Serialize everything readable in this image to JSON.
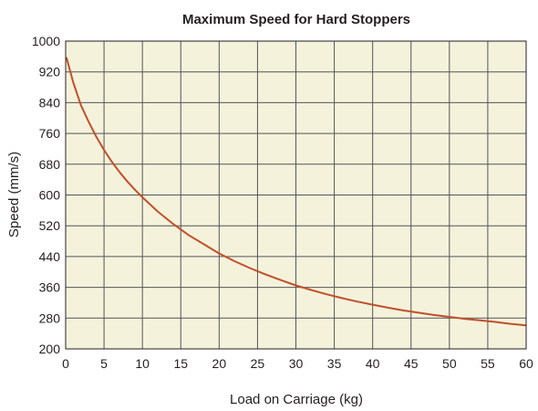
{
  "chart_data": {
    "type": "line",
    "title": "Maximum Speed for Hard Stoppers",
    "xlabel": "Load on Carriage (kg)",
    "ylabel": "Speed (mm/s)",
    "xlim": [
      0,
      60
    ],
    "ylim": [
      200,
      1000
    ],
    "x_ticks": [
      "0",
      "5",
      "10",
      "15",
      "20",
      "25",
      "30",
      "35",
      "40",
      "45",
      "50",
      "55",
      "60"
    ],
    "y_ticks": [
      "200",
      "280",
      "360",
      "440",
      "520",
      "600",
      "680",
      "760",
      "840",
      "920",
      "1000"
    ],
    "grid": true,
    "legend": "none",
    "colors": {
      "plot_background": "#f5f2dc",
      "grid": "#555555",
      "line": "#c0502a"
    },
    "series": [
      {
        "x": [
          0.1,
          1,
          2,
          3,
          4,
          5,
          6,
          7,
          8,
          9,
          10,
          12,
          14,
          16,
          18,
          20,
          22,
          24,
          26,
          28,
          30,
          32,
          34,
          36,
          38,
          40,
          42,
          44,
          46,
          48,
          50,
          52,
          54,
          56,
          58,
          60
        ],
        "values": [
          958,
          892,
          833,
          790,
          751,
          717,
          687,
          660,
          636,
          614,
          594,
          557,
          525,
          496,
          472,
          448,
          428,
          410,
          394,
          379,
          365,
          353,
          342,
          332,
          323,
          315,
          307,
          300,
          294,
          288,
          283,
          278,
          274,
          270,
          265,
          261
        ]
      }
    ]
  }
}
